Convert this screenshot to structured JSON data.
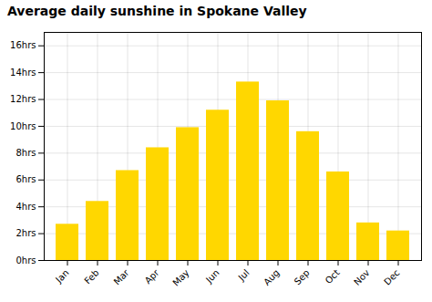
{
  "chart_data": {
    "type": "bar",
    "title": "Average daily sunshine in Spokane Valley",
    "categories": [
      "Jan",
      "Feb",
      "Mar",
      "Apr",
      "May",
      "Jun",
      "Jul",
      "Aug",
      "Sep",
      "Oct",
      "Nov",
      "Dec"
    ],
    "values": [
      2.7,
      4.4,
      6.7,
      8.4,
      9.9,
      11.2,
      13.3,
      11.9,
      9.6,
      6.6,
      2.8,
      2.2
    ],
    "color": "#FFD700",
    "ylim": [
      0,
      17
    ],
    "yticks": [
      {
        "value": 0,
        "label": "0hrs"
      },
      {
        "value": 2,
        "label": "2hrs"
      },
      {
        "value": 4,
        "label": "4hrs"
      },
      {
        "value": 6,
        "label": "6hrs"
      },
      {
        "value": 8,
        "label": "8hrs"
      },
      {
        "value": 10,
        "label": "10hrs"
      },
      {
        "value": 12,
        "label": "12hrs"
      },
      {
        "value": 14,
        "label": "14hrs"
      },
      {
        "value": 16,
        "label": "16hrs"
      }
    ],
    "grid": true
  }
}
